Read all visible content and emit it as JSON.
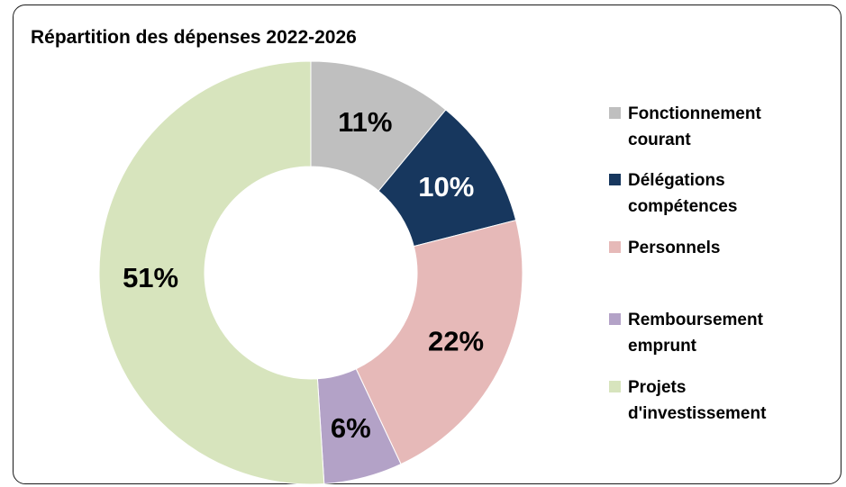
{
  "chart_data": {
    "type": "pie",
    "title": "Répartition des dépenses 2022-2026",
    "hole": "donut",
    "start": "top, clockwise",
    "legend_position": "right",
    "slices": [
      {
        "label": "Fonctionnement courant",
        "value": 11,
        "data_label": "11%",
        "color": "#bfbfbf",
        "label_color": "#000000"
      },
      {
        "label": "Délégations compétences",
        "value": 10,
        "data_label": "10%",
        "color": "#17375e",
        "label_color": "#ffffff"
      },
      {
        "label": "Personnels",
        "value": 22,
        "data_label": "22%",
        "color": "#e6b9b8",
        "label_color": "#000000"
      },
      {
        "label": "Remboursement emprunt",
        "value": 6,
        "data_label": "6%",
        "color": "#b3a2c7",
        "label_color": "#000000"
      },
      {
        "label": "Projets d'investissement",
        "value": 51,
        "data_label": "51%",
        "color": "#d7e4bd",
        "label_color": "#000000"
      }
    ]
  },
  "legend": {
    "items": [
      {
        "text": "Fonctionnement\ncourant",
        "color": "#bfbfbf"
      },
      {
        "text": "Délégations\ncompétences",
        "color": "#17375e"
      },
      {
        "text": "Personnels",
        "color": "#e6b9b8"
      },
      {
        "text": "Remboursement\nemprunt",
        "color": "#b3a2c7"
      },
      {
        "text": "Projets\nd'investissement",
        "color": "#d7e4bd"
      }
    ]
  }
}
